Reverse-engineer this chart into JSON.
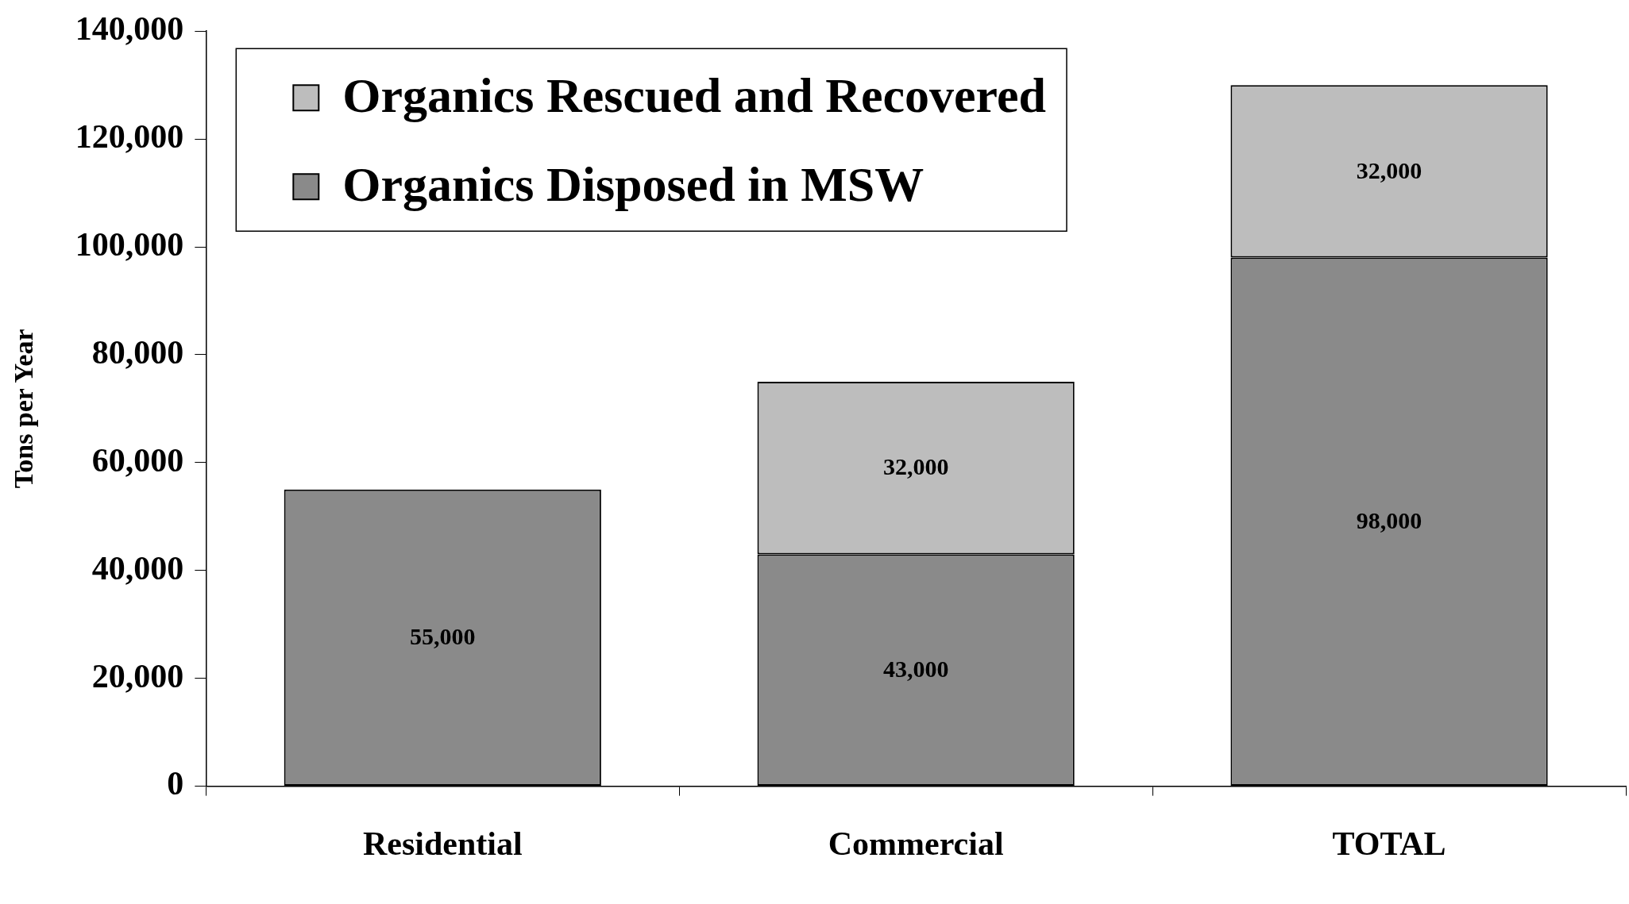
{
  "chart_data": {
    "type": "bar",
    "stacked": true,
    "ylabel": "Tons per Year",
    "categories": [
      "Residential",
      "Commercial",
      "TOTAL"
    ],
    "series": [
      {
        "name": "Organics Disposed in MSW",
        "color": "#8a8a8a",
        "values": [
          55000,
          43000,
          98000
        ],
        "value_labels": [
          "55,000",
          "43,000",
          "98,000"
        ]
      },
      {
        "name": "Organics Rescued and Recovered",
        "color": "#bdbdbd",
        "values": [
          null,
          32000,
          32000
        ],
        "value_labels": [
          null,
          "32,000",
          "32,000"
        ]
      }
    ],
    "ylim": [
      0,
      140000
    ],
    "yticks": [
      {
        "value": 0,
        "label": "0"
      },
      {
        "value": 20000,
        "label": "20,000"
      },
      {
        "value": 40000,
        "label": "40,000"
      },
      {
        "value": 60000,
        "label": "60,000"
      },
      {
        "value": 80000,
        "label": "80,000"
      },
      {
        "value": 100000,
        "label": "100,000"
      },
      {
        "value": 120000,
        "label": "120,000"
      },
      {
        "value": 140000,
        "label": "140,000"
      }
    ],
    "grid": false,
    "legend": "top left"
  }
}
